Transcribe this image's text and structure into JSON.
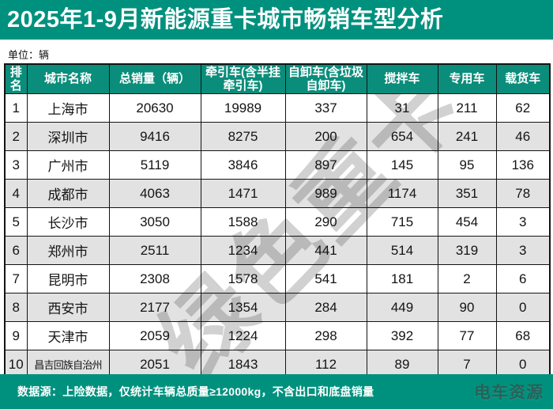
{
  "title": "2025年1-9月新能源重卡城市畅销车型分析",
  "unit_label": "单位：辆",
  "watermark": "绿色重卡",
  "colors": {
    "accent_teal": "#00917E",
    "header_cell_teal": "#0B8D7B",
    "alt_row_gray": "#E2E2E2",
    "border_black": "#141414",
    "watermark_gray": "#8C8C8C"
  },
  "table": {
    "headers": [
      "排\n名",
      "城市名称",
      "总销量（辆）",
      "牵引车(含半挂\n牵引车)",
      "自卸车(含垃圾\n自卸车)",
      "搅拌车",
      "专用车",
      "载货车"
    ],
    "rows": [
      {
        "rank": "1",
        "city": "上海市",
        "total": "20630",
        "tractor": "19989",
        "dump": "337",
        "mixer": "31",
        "special": "211",
        "cargo": "62"
      },
      {
        "rank": "2",
        "city": "深圳市",
        "total": "9416",
        "tractor": "8275",
        "dump": "200",
        "mixer": "654",
        "special": "241",
        "cargo": "46"
      },
      {
        "rank": "3",
        "city": "广州市",
        "total": "5119",
        "tractor": "3846",
        "dump": "897",
        "mixer": "145",
        "special": "95",
        "cargo": "136"
      },
      {
        "rank": "4",
        "city": "成都市",
        "total": "4063",
        "tractor": "1471",
        "dump": "989",
        "mixer": "1174",
        "special": "351",
        "cargo": "78"
      },
      {
        "rank": "5",
        "city": "长沙市",
        "total": "3050",
        "tractor": "1588",
        "dump": "290",
        "mixer": "715",
        "special": "454",
        "cargo": "3"
      },
      {
        "rank": "6",
        "city": "郑州市",
        "total": "2511",
        "tractor": "1234",
        "dump": "441",
        "mixer": "514",
        "special": "319",
        "cargo": "3"
      },
      {
        "rank": "7",
        "city": "昆明市",
        "total": "2308",
        "tractor": "1578",
        "dump": "541",
        "mixer": "181",
        "special": "2",
        "cargo": "6"
      },
      {
        "rank": "8",
        "city": "西安市",
        "total": "2177",
        "tractor": "1354",
        "dump": "284",
        "mixer": "449",
        "special": "90",
        "cargo": "0"
      },
      {
        "rank": "9",
        "city": "天津市",
        "total": "2059",
        "tractor": "1224",
        "dump": "298",
        "mixer": "392",
        "special": "77",
        "cargo": "68"
      },
      {
        "rank": "10",
        "city": "昌吉回族自治州",
        "total": "2051",
        "tractor": "1843",
        "dump": "112",
        "mixer": "89",
        "special": "7",
        "cargo": "0"
      }
    ]
  },
  "footer": {
    "source_note": "数据源：上险数据，仅统计车辆总质量≥12000kg，不含出口和底盘销量",
    "logo": "电车资源"
  },
  "chart_data": {
    "type": "table",
    "title": "2025年1-9月新能源重卡城市畅销车型分析",
    "unit": "辆",
    "columns": [
      "排名",
      "城市名称",
      "总销量（辆）",
      "牵引车(含半挂牵引车)",
      "自卸车(含垃圾自卸车)",
      "搅拌车",
      "专用车",
      "载货车"
    ],
    "rows": [
      [
        1,
        "上海市",
        20630,
        19989,
        337,
        31,
        211,
        62
      ],
      [
        2,
        "深圳市",
        9416,
        8275,
        200,
        654,
        241,
        46
      ],
      [
        3,
        "广州市",
        5119,
        3846,
        897,
        145,
        95,
        136
      ],
      [
        4,
        "成都市",
        4063,
        1471,
        989,
        1174,
        351,
        78
      ],
      [
        5,
        "长沙市",
        3050,
        1588,
        290,
        715,
        454,
        3
      ],
      [
        6,
        "郑州市",
        2511,
        1234,
        441,
        514,
        319,
        3
      ],
      [
        7,
        "昆明市",
        2308,
        1578,
        541,
        181,
        2,
        6
      ],
      [
        8,
        "西安市",
        2177,
        1354,
        284,
        449,
        90,
        0
      ],
      [
        9,
        "天津市",
        2059,
        1224,
        298,
        392,
        77,
        68
      ],
      [
        10,
        "昌吉回族自治州",
        2051,
        1843,
        112,
        89,
        7,
        0
      ]
    ],
    "footnote": "数据源：上险数据，仅统计车辆总质量≥12000kg，不含出口和底盘销量"
  }
}
